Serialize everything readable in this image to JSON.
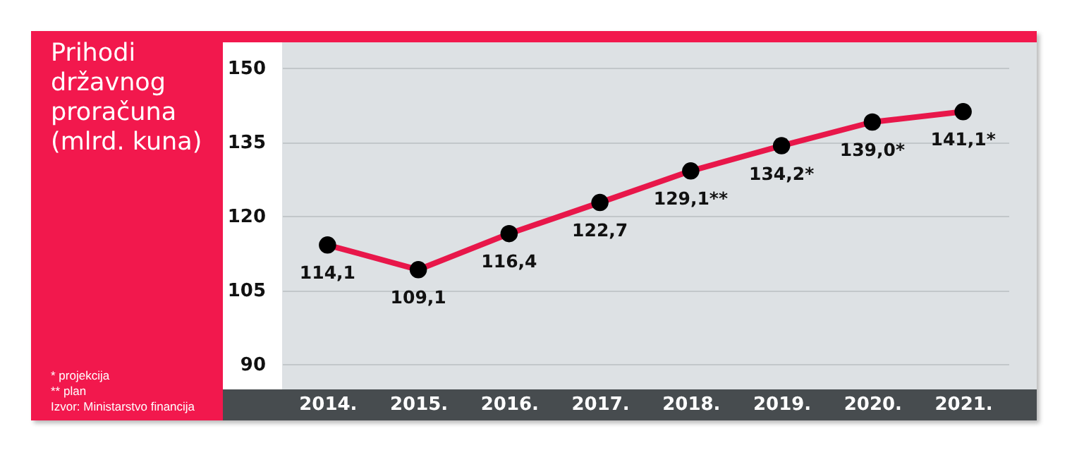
{
  "chart_data": {
    "type": "line",
    "title": "Prihodi državnog proračuna (mlrd. kuna)",
    "categories": [
      "2014.",
      "2015.",
      "2016.",
      "2017.",
      "2018.",
      "2019.",
      "2020.",
      "2021."
    ],
    "values": [
      114.1,
      109.1,
      116.4,
      122.7,
      129.1,
      134.2,
      139.0,
      141.1
    ],
    "value_labels": [
      "114,1",
      "109,1",
      "116,4",
      "122,7",
      "129,1**",
      "134,2*",
      "139,0*",
      "141,1*"
    ],
    "color": "#e8174a",
    "marker": "circle",
    "ylim": [
      90,
      150
    ],
    "yticks": [
      90,
      105,
      120,
      135,
      150
    ],
    "grid": "y",
    "annotations": [
      "* projekcija",
      "** plan",
      "Izvor: Ministarstvo financija"
    ]
  }
}
